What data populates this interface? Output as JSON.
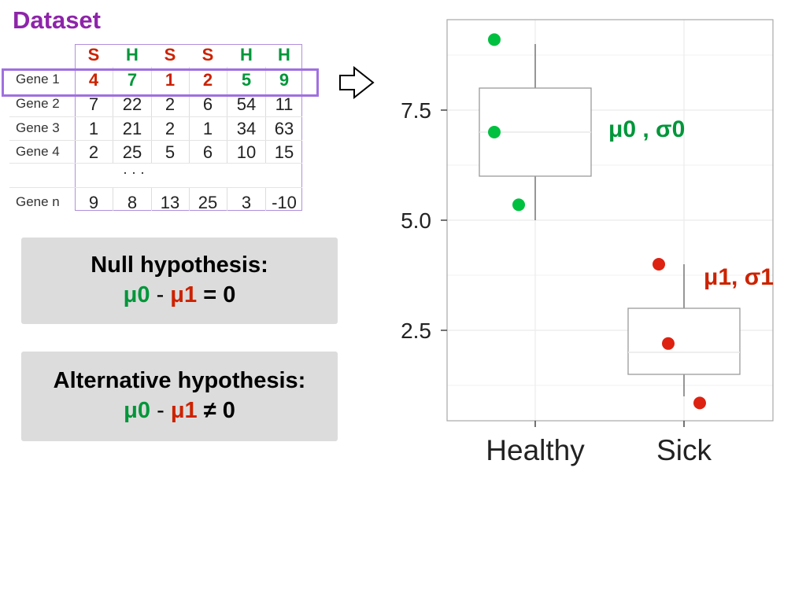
{
  "title": "Dataset",
  "table": {
    "headers": [
      {
        "label": "S",
        "color": "#cc2200"
      },
      {
        "label": "H",
        "color": "#00963a"
      },
      {
        "label": "S",
        "color": "#cc2200"
      },
      {
        "label": "S",
        "color": "#cc2200"
      },
      {
        "label": "H",
        "color": "#00963a"
      },
      {
        "label": "H",
        "color": "#00963a"
      }
    ],
    "rows": [
      {
        "label": "Gene 1",
        "values": [
          "4",
          "7",
          "1",
          "2",
          "5",
          "9"
        ]
      },
      {
        "label": "Gene 2",
        "values": [
          "7",
          "22",
          "2",
          "6",
          "54",
          "11"
        ]
      },
      {
        "label": "Gene 3",
        "values": [
          "1",
          "21",
          "2",
          "1",
          "34",
          "63"
        ]
      },
      {
        "label": "Gene 4",
        "values": [
          "2",
          "25",
          "5",
          "6",
          "10",
          "15"
        ]
      },
      {
        "label": "Gene n",
        "values": [
          "9",
          "8",
          "13",
          "25",
          "3",
          "-10"
        ]
      }
    ],
    "ellipsis": "· · ·"
  },
  "null_box": {
    "title": "Null hypothesis:",
    "mu0": "μ0",
    "minus": "-",
    "mu1": "μ1",
    "rel": "= 0"
  },
  "alt_box": {
    "title": "Alternative hypothesis:",
    "mu0": "μ0",
    "minus": "-",
    "mu1": "μ1",
    "rel": "≠ 0"
  },
  "colors": {
    "healthy": "#00c040",
    "sick": "#dd2211",
    "highlight": "#a070e0",
    "param_green": "#00963a",
    "param_red": "#cc2200"
  },
  "chart_data": {
    "type": "box",
    "categories": [
      "Healthy",
      "Sick"
    ],
    "series": [
      {
        "category": "Healthy",
        "points": [
          9.1,
          7.0,
          5.35
        ],
        "q1": 6.0,
        "median": 7.0,
        "q3": 8.0,
        "whisker_low": 5.0,
        "whisker_high": 9.0,
        "label": "μ0 , σ0"
      },
      {
        "category": "Sick",
        "points": [
          4.0,
          2.2,
          0.85
        ],
        "q1": 1.5,
        "median": 2.0,
        "q3": 3.0,
        "whisker_low": 1.0,
        "whisker_high": 4.0,
        "label": "μ1, σ1"
      }
    ],
    "yticks": [
      "2.5",
      "5.0",
      "7.5"
    ],
    "ylim": [
      0.5,
      9.6
    ],
    "grid": true
  }
}
